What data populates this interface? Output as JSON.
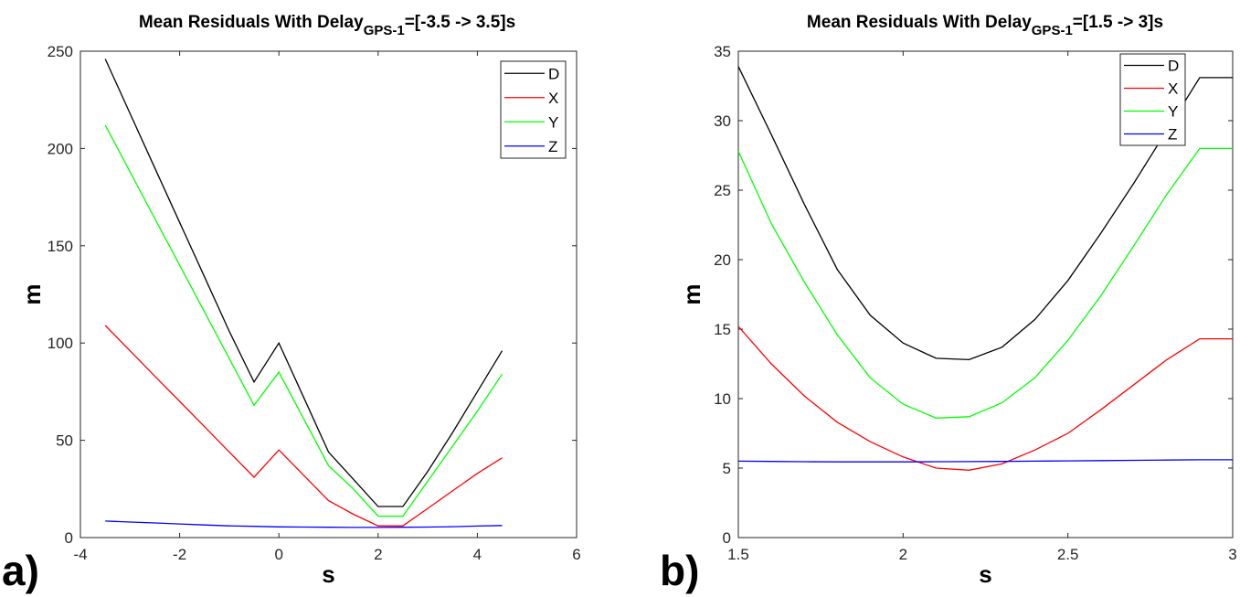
{
  "chart_data": [
    {
      "type": "line",
      "panel_label": "a)",
      "title": "Mean Residuals With Delay",
      "title_subscript": "GPS-1",
      "title_suffix": "=[-3.5 -> 3.5]s",
      "xlabel": "s",
      "ylabel": "m",
      "xlim": [
        -4,
        6
      ],
      "ylim": [
        0,
        250
      ],
      "xticks": [
        -4,
        -2,
        0,
        2,
        4,
        6
      ],
      "yticks": [
        0,
        50,
        100,
        150,
        200,
        250
      ],
      "legend_position": "top-right",
      "x": [
        -3.5,
        -3,
        -2.5,
        -2,
        -1.5,
        -1,
        -0.5,
        0,
        0.5,
        1,
        1.5,
        2,
        2.5,
        3,
        3.5,
        4,
        4.5
      ],
      "series": [
        {
          "name": "D",
          "color": "#000000",
          "values": [
            246,
            218,
            190,
            162,
            134,
            106,
            80,
            100,
            72,
            44,
            30,
            16,
            16,
            34,
            54,
            75,
            96
          ]
        },
        {
          "name": "X",
          "color": "#ff0000",
          "values": [
            109,
            96,
            83,
            70,
            57,
            44,
            31,
            45,
            32,
            19,
            12,
            6,
            6,
            15,
            24,
            33,
            41
          ]
        },
        {
          "name": "Y",
          "color": "#00ff00",
          "values": [
            212,
            188,
            164,
            140,
            116,
            92,
            68,
            85,
            61,
            37,
            25,
            11,
            11,
            29,
            47,
            65,
            84
          ]
        },
        {
          "name": "Z",
          "color": "#0000ff",
          "values": [
            8.5,
            8,
            7.5,
            7,
            6.5,
            6,
            5.8,
            5.5,
            5.4,
            5.3,
            5.2,
            5.2,
            5.3,
            5.4,
            5.6,
            5.9,
            6.2
          ]
        }
      ]
    },
    {
      "type": "line",
      "panel_label": "b)",
      "title": "Mean Residuals With Delay",
      "title_subscript": "GPS-1",
      "title_suffix": "=[1.5 -> 3]s",
      "xlabel": "s",
      "ylabel": "m",
      "xlim": [
        1.5,
        3
      ],
      "ylim": [
        0,
        35
      ],
      "xticks": [
        1.5,
        2,
        2.5,
        3
      ],
      "xtick_labels": [
        "1.5",
        "2",
        "2.5",
        "3"
      ],
      "yticks": [
        0,
        5,
        10,
        15,
        20,
        25,
        30,
        35
      ],
      "legend_position": "top-right",
      "x": [
        1.5,
        1.6,
        1.7,
        1.8,
        1.9,
        2.0,
        2.1,
        2.2,
        2.3,
        2.4,
        2.5,
        2.6,
        2.7,
        2.8,
        2.9,
        3.0
      ],
      "series": [
        {
          "name": "D",
          "color": "#000000",
          "values": [
            33.9,
            29.0,
            24.0,
            19.3,
            16.0,
            14.0,
            12.9,
            12.8,
            13.7,
            15.7,
            18.5,
            21.9,
            25.5,
            29.3,
            33.1,
            33.1
          ]
        },
        {
          "name": "X",
          "color": "#ff0000",
          "values": [
            15.2,
            12.5,
            10.2,
            8.3,
            6.9,
            5.8,
            5.0,
            4.85,
            5.3,
            6.3,
            7.5,
            9.2,
            11.0,
            12.8,
            14.3,
            14.3
          ]
        },
        {
          "name": "Y",
          "color": "#00ff00",
          "values": [
            27.8,
            22.6,
            18.4,
            14.6,
            11.5,
            9.6,
            8.6,
            8.7,
            9.7,
            11.5,
            14.2,
            17.4,
            21.0,
            24.7,
            28.0,
            28.0
          ]
        },
        {
          "name": "Z",
          "color": "#0000ff",
          "values": [
            5.5,
            5.48,
            5.46,
            5.45,
            5.45,
            5.45,
            5.46,
            5.47,
            5.48,
            5.5,
            5.52,
            5.54,
            5.56,
            5.58,
            5.6,
            5.6
          ]
        }
      ]
    }
  ]
}
